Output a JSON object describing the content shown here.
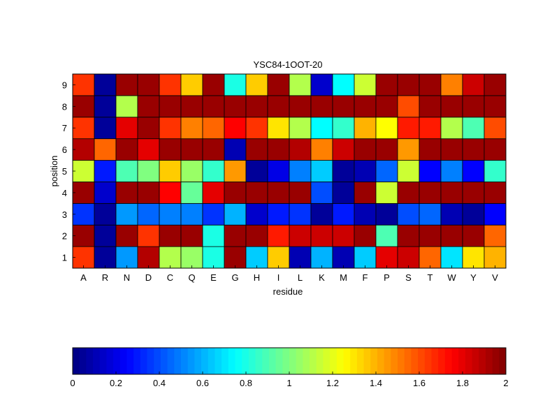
{
  "chart_data": {
    "type": "heatmap",
    "title": "YSC84-1OOT-20",
    "xlabel": "residue",
    "ylabel": "position",
    "x_categories": [
      "A",
      "R",
      "N",
      "D",
      "C",
      "Q",
      "E",
      "G",
      "H",
      "I",
      "L",
      "K",
      "M",
      "F",
      "P",
      "S",
      "T",
      "W",
      "Y",
      "V"
    ],
    "y_categories": [
      "1",
      "2",
      "3",
      "4",
      "5",
      "6",
      "7",
      "8",
      "9"
    ],
    "values_by_position": {
      "9": [
        1.65,
        0.05,
        1.95,
        1.95,
        1.65,
        1.35,
        1.95,
        0.8,
        1.35,
        1.95,
        1.1,
        0.15,
        0.75,
        1.15,
        1.95,
        1.95,
        1.95,
        1.5,
        1.85,
        1.95
      ],
      "8": [
        1.95,
        0.05,
        1.1,
        1.95,
        1.95,
        1.95,
        1.95,
        1.95,
        1.95,
        1.95,
        1.95,
        1.95,
        1.95,
        1.95,
        1.95,
        1.6,
        1.95,
        1.95,
        1.95,
        1.95
      ],
      "7": [
        1.65,
        0.05,
        1.8,
        1.95,
        1.65,
        1.5,
        1.55,
        1.75,
        1.65,
        1.3,
        1.1,
        0.75,
        0.85,
        1.4,
        1.25,
        1.7,
        1.7,
        1.1,
        0.9,
        1.6
      ],
      "6": [
        1.9,
        1.55,
        1.95,
        1.8,
        1.95,
        1.95,
        1.95,
        0.1,
        1.95,
        1.95,
        1.9,
        1.5,
        1.85,
        1.95,
        1.95,
        1.45,
        1.95,
        1.95,
        1.95,
        1.95
      ],
      "5": [
        1.15,
        0.3,
        0.9,
        1.0,
        1.35,
        1.05,
        0.85,
        1.45,
        0.05,
        0.2,
        0.5,
        0.65,
        0.05,
        0.1,
        0.45,
        1.15,
        0.25,
        0.5,
        0.25,
        0.85
      ],
      "4": [
        1.95,
        0.15,
        1.95,
        1.95,
        1.75,
        0.95,
        1.8,
        1.95,
        1.95,
        1.95,
        1.95,
        0.4,
        0.05,
        1.95,
        1.15,
        1.95,
        1.95,
        1.95,
        1.95,
        1.95
      ],
      "3": [
        0.35,
        0.05,
        0.55,
        0.45,
        0.5,
        0.5,
        0.35,
        0.6,
        0.15,
        0.3,
        0.35,
        0.05,
        0.3,
        0.1,
        0.05,
        0.4,
        0.45,
        0.1,
        0.05,
        0.25
      ],
      "2": [
        1.95,
        0.05,
        1.95,
        1.65,
        1.95,
        1.95,
        0.8,
        1.95,
        1.95,
        1.7,
        1.85,
        1.85,
        1.85,
        1.95,
        0.9,
        1.95,
        1.95,
        1.95,
        1.95,
        1.55
      ],
      "1": [
        1.65,
        0.05,
        0.55,
        1.9,
        1.1,
        1.05,
        0.8,
        1.95,
        0.65,
        1.35,
        0.1,
        0.6,
        0.1,
        0.65,
        1.8,
        1.85,
        1.55,
        0.7,
        1.3,
        1.4
      ]
    },
    "color_scale": {
      "colormap": "jet",
      "min": 0,
      "max": 2,
      "ticks": [
        "0",
        "0.2",
        "0.4",
        "0.6",
        "0.8",
        "1",
        "1.2",
        "1.4",
        "1.6",
        "1.8",
        "2"
      ],
      "placement": "bottom"
    },
    "grid": "cell borders"
  }
}
